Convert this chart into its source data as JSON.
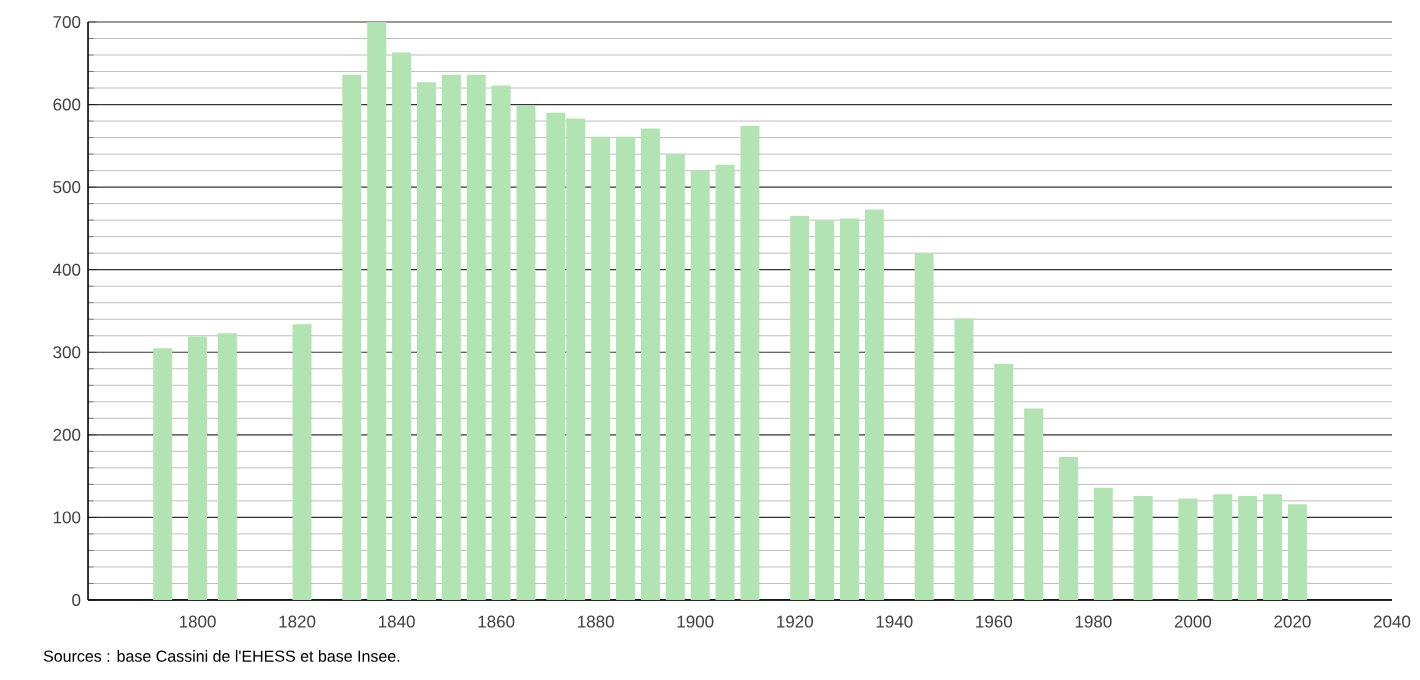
{
  "chart_data": {
    "type": "bar",
    "x": [
      1793,
      1800,
      1806,
      1821,
      1831,
      1836,
      1841,
      1846,
      1851,
      1856,
      1861,
      1866,
      1872,
      1876,
      1881,
      1886,
      1891,
      1896,
      1901,
      1906,
      1911,
      1921,
      1926,
      1931,
      1936,
      1946,
      1954,
      1962,
      1968,
      1975,
      1982,
      1990,
      1999,
      2006,
      2011,
      2016,
      2021
    ],
    "values": [
      305,
      319,
      323,
      334,
      636,
      700,
      663,
      627,
      636,
      636,
      623,
      599,
      590,
      583,
      561,
      561,
      571,
      540,
      520,
      527,
      574,
      465,
      460,
      462,
      473,
      420,
      341,
      286,
      232,
      173,
      136,
      126,
      123,
      128,
      126,
      128,
      116
    ],
    "color": "#b2e3b2",
    "xlim": [
      1778,
      2040
    ],
    "xticks": [
      1800,
      1820,
      1840,
      1860,
      1880,
      1900,
      1920,
      1940,
      1960,
      1980,
      2000,
      2020,
      2040
    ],
    "ylim": [
      0,
      700
    ],
    "yticks": [
      0,
      100,
      200,
      300,
      400,
      500,
      600,
      700
    ],
    "grid": "y",
    "annotations": [
      "Sources : base Cassini de l'EHESS et base Insee."
    ]
  }
}
